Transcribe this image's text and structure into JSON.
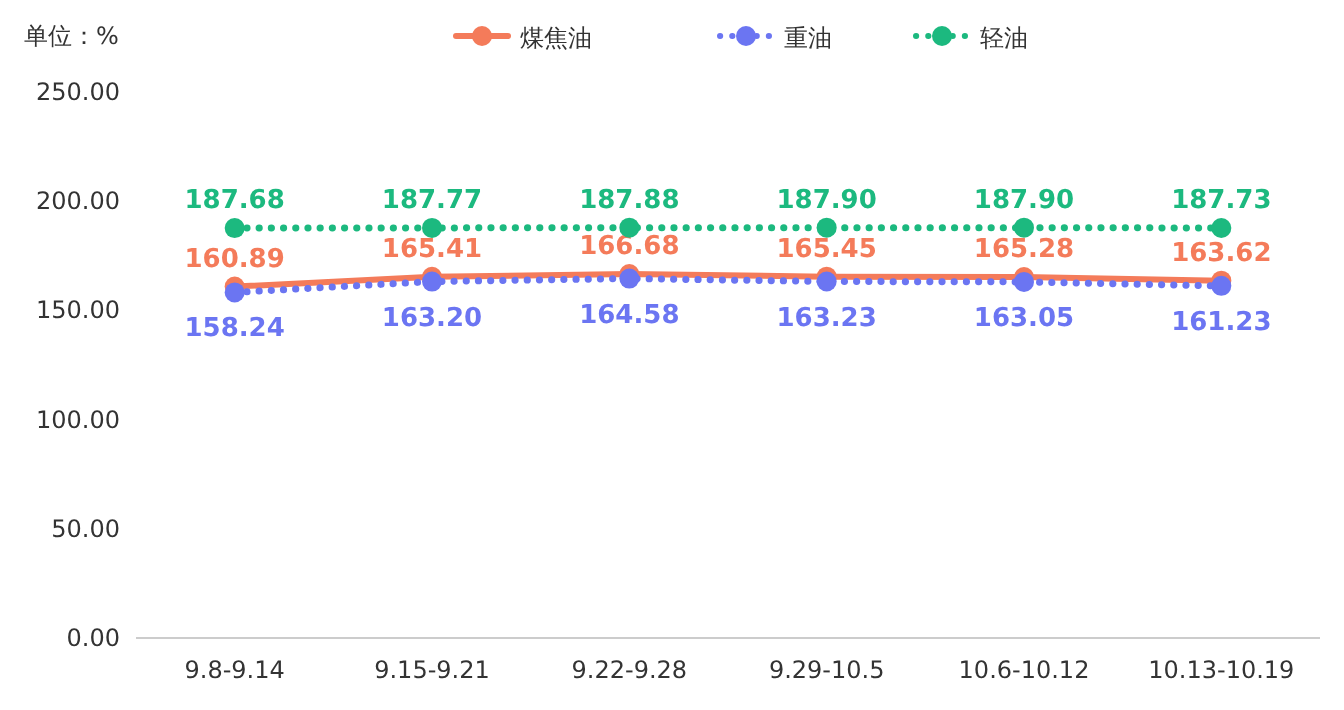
{
  "chart_data": {
    "type": "line",
    "ylabel": "单位：%",
    "categories": [
      "9.8-9.14",
      "9.15-9.21",
      "9.22-9.28",
      "9.29-10.5",
      "10.6-10.12",
      "10.13-10.19"
    ],
    "series": [
      {
        "name": "煤焦油",
        "color": "#f47b5a",
        "line_style": "solid",
        "values": [
          160.89,
          165.41,
          166.68,
          165.45,
          165.28,
          163.62
        ],
        "value_labels": [
          "160.89",
          "165.41",
          "166.68",
          "165.45",
          "165.28",
          "163.62"
        ]
      },
      {
        "name": "重油",
        "color": "#6b75f2",
        "line_style": "dotted",
        "values": [
          158.24,
          163.2,
          164.58,
          163.23,
          163.05,
          161.23
        ],
        "value_labels": [
          "158.24",
          "163.20",
          "164.58",
          "163.23",
          "163.05",
          "161.23"
        ]
      },
      {
        "name": "轻油",
        "color": "#1cb97f",
        "line_style": "dotted",
        "values": [
          187.68,
          187.77,
          187.88,
          187.9,
          187.9,
          187.73
        ],
        "value_labels": [
          "187.68",
          "187.77",
          "187.88",
          "187.90",
          "187.90",
          "187.73"
        ]
      }
    ],
    "ylim": [
      0,
      250
    ],
    "yticks": [
      {
        "value": 0,
        "label": "0.00"
      },
      {
        "value": 50,
        "label": "50.00"
      },
      {
        "value": 100,
        "label": "100.00"
      },
      {
        "value": 150,
        "label": "150.00"
      },
      {
        "value": 200,
        "label": "200.00"
      },
      {
        "value": 250,
        "label": "250.00"
      }
    ],
    "marker": "circle",
    "legend": "top",
    "grid": false
  }
}
